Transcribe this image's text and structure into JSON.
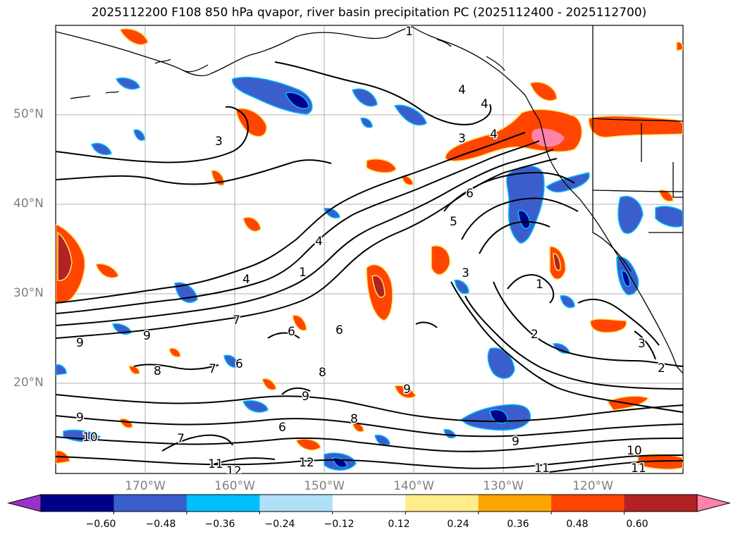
{
  "title": "2025112200 F108 850 hPa qvapor, river basin precipitation PC (2025112400 - 2025112700)",
  "lat_labels": [
    "50°N",
    "40°N",
    "30°N",
    "20°N"
  ],
  "lon_labels": [
    "170°W",
    "160°W",
    "150°W",
    "140°W",
    "130°W",
    "120°W"
  ],
  "contour_labels": [
    "1",
    "4",
    "4",
    "3",
    "4",
    "3",
    "6",
    "5",
    "4",
    "4",
    "3",
    "1",
    "7",
    "6",
    "6",
    "9",
    "9",
    "8",
    "7",
    "8",
    "6",
    "9",
    "9",
    "6",
    "8",
    "9",
    "10",
    "7",
    "11",
    "12",
    "12",
    "9",
    "11",
    "10",
    "11",
    "2",
    "3",
    "2",
    "1"
  ],
  "colorbar": {
    "colors": [
      "#9932cc",
      "#00008b",
      "#3a5fcd",
      "#00bfff",
      "#afe0f7",
      "#ffffff",
      "#ffec8b",
      "#ffa500",
      "#ff4500",
      "#b22222",
      "#ff82ab"
    ],
    "tick_labels": [
      "−0.60",
      "−0.48",
      "−0.36",
      "−0.24",
      "−0.12",
      "0.12",
      "0.24",
      "0.36",
      "0.48",
      "0.60"
    ]
  }
}
